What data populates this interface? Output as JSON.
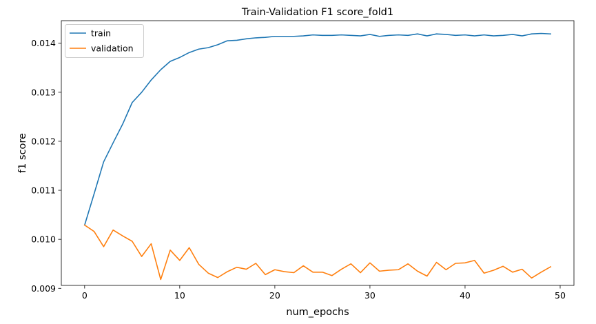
{
  "chart_data": {
    "type": "line",
    "title": "Train-Validation F1 score_fold1",
    "xlabel": "num_epochs",
    "ylabel": "f1 score",
    "xlim": [
      -2.45,
      51.45
    ],
    "ylim": [
      0.00906,
      0.01446
    ],
    "xticks": [
      0,
      10,
      20,
      30,
      40,
      50
    ],
    "yticks": [
      0.009,
      0.01,
      0.011,
      0.012,
      0.013,
      0.014
    ],
    "ytick_labels": [
      "0.009",
      "0.010",
      "0.011",
      "0.012",
      "0.013",
      "0.014"
    ],
    "grid": false,
    "legend_position": "upper-left",
    "x": [
      0,
      1,
      2,
      3,
      4,
      5,
      6,
      7,
      8,
      9,
      10,
      11,
      12,
      13,
      14,
      15,
      16,
      17,
      18,
      19,
      20,
      21,
      22,
      23,
      24,
      25,
      26,
      27,
      28,
      29,
      30,
      31,
      32,
      33,
      34,
      35,
      36,
      37,
      38,
      39,
      40,
      41,
      42,
      43,
      44,
      45,
      46,
      47,
      48,
      49
    ],
    "series": [
      {
        "name": "train",
        "color": "#1f77b4",
        "values": [
          0.01029,
          0.01093,
          0.01158,
          0.01197,
          0.01235,
          0.01279,
          0.013,
          0.01325,
          0.01346,
          0.01363,
          0.01371,
          0.01381,
          0.01388,
          0.01391,
          0.01397,
          0.01405,
          0.01406,
          0.01409,
          0.01411,
          0.01412,
          0.01414,
          0.01414,
          0.01414,
          0.01415,
          0.01417,
          0.01416,
          0.01416,
          0.01417,
          0.01416,
          0.01415,
          0.01418,
          0.01414,
          0.01416,
          0.01417,
          0.01416,
          0.01419,
          0.01415,
          0.01419,
          0.01418,
          0.01416,
          0.01417,
          0.01415,
          0.01417,
          0.01415,
          0.01416,
          0.01418,
          0.01415,
          0.01419,
          0.0142,
          0.01419
        ]
      },
      {
        "name": "validation",
        "color": "#ff7f0e",
        "values": [
          0.01029,
          0.01016,
          0.00985,
          0.01019,
          0.01007,
          0.00996,
          0.00965,
          0.00991,
          0.00918,
          0.00978,
          0.00957,
          0.00983,
          0.00949,
          0.00931,
          0.00922,
          0.00934,
          0.00943,
          0.00939,
          0.00951,
          0.00928,
          0.00938,
          0.00934,
          0.00932,
          0.00946,
          0.00933,
          0.00933,
          0.00926,
          0.00939,
          0.0095,
          0.00932,
          0.00952,
          0.00935,
          0.00937,
          0.00938,
          0.0095,
          0.00935,
          0.00925,
          0.00953,
          0.00938,
          0.00951,
          0.00952,
          0.00957,
          0.00931,
          0.00937,
          0.00945,
          0.00933,
          0.00939,
          0.00921,
          0.00933,
          0.00944
        ]
      }
    ]
  }
}
